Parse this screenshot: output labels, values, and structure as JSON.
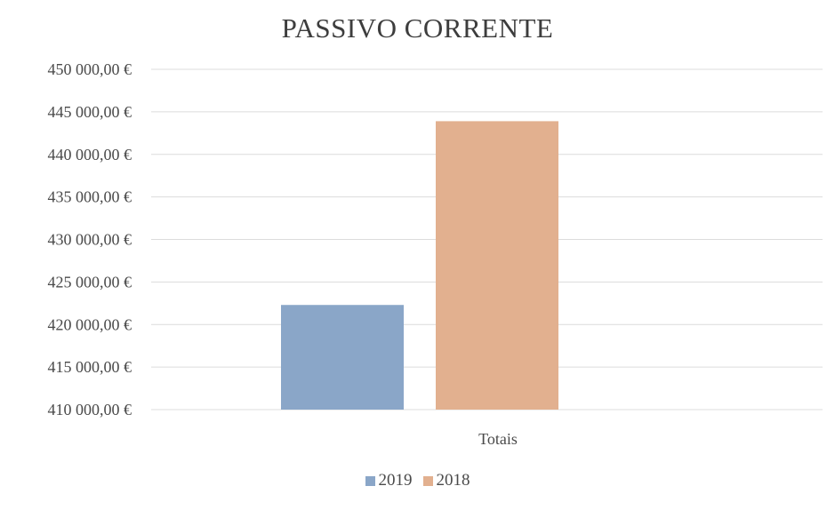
{
  "chart_data": {
    "type": "bar",
    "title": "PASSIVO CORRENTE",
    "categories": [
      "Totais"
    ],
    "series": [
      {
        "name": "2019",
        "values": [
          422300
        ],
        "color": "#8aa6c8"
      },
      {
        "name": "2018",
        "values": [
          443900
        ],
        "color": "#e2b08f"
      }
    ],
    "ylim": [
      410000,
      450000
    ],
    "yticks": [
      410000,
      415000,
      420000,
      425000,
      430000,
      435000,
      440000,
      445000,
      450000
    ],
    "ytick_labels": [
      "410 000,00 €",
      "415 000,00 €",
      "420 000,00 €",
      "425 000,00 €",
      "430 000,00 €",
      "435 000,00 €",
      "440 000,00 €",
      "445 000,00 €",
      "450 000,00 €"
    ],
    "xlabel": "",
    "ylabel": "",
    "grid": true,
    "legend_position": "bottom"
  }
}
